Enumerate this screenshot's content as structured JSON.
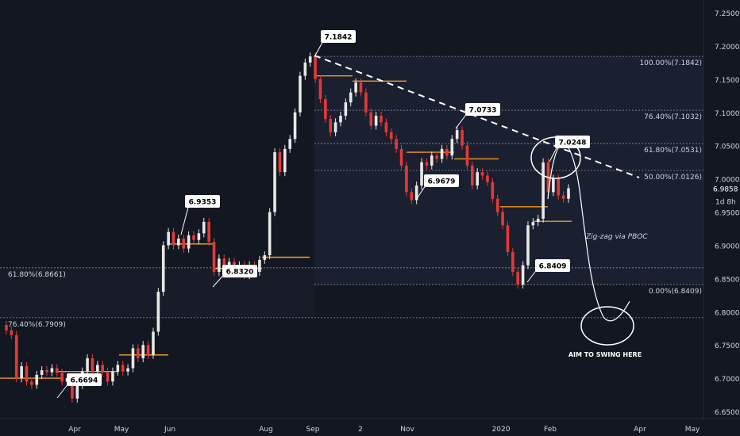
{
  "chart_data": {
    "type": "candlestick",
    "title": "",
    "xlabel": "",
    "ylabel": "",
    "ylim": [
      6.64,
      7.27
    ],
    "grid": false,
    "colors": {
      "background": "#131722",
      "bull": "#e8e8e8",
      "bear": "#e53935",
      "level_line": "#f59a23",
      "axis_text": "#d1d4dc",
      "fib_line": "#8a8d95",
      "trendline": "#ffffff"
    },
    "y_ticks": [
      "7.2500",
      "7.2000",
      "7.1500",
      "7.1000",
      "7.0500",
      "7.0000",
      "6.9500",
      "6.9000",
      "6.8500",
      "6.8000",
      "6.7500",
      "6.7000",
      "6.6500"
    ],
    "x_ticks": [
      "Apr",
      "May",
      "Jun",
      "Aug",
      "Sep",
      "2",
      "Nov",
      "2020",
      "Feb",
      "Apr",
      "May"
    ],
    "price_axis": {
      "last_price": "6.9858",
      "countdown": "1d 8h"
    },
    "fib_levels": [
      {
        "label": "100.00%(7.1842)",
        "value": 7.1842
      },
      {
        "label": "76.40%(7.1032)",
        "value": 7.1032
      },
      {
        "label": "61.80%(7.0531)",
        "value": 7.0531
      },
      {
        "label": "50.00%(7.0126)",
        "value": 7.0126
      },
      {
        "label": "0.00%(6.8409)",
        "value": 6.8409
      }
    ],
    "left_fib_levels": [
      {
        "label": "61.80%(6.8661)",
        "value": 6.8661
      },
      {
        "label": "76.40%(6.7909)",
        "value": 6.7909
      }
    ],
    "price_callouts": [
      "7.1842",
      "7.0733",
      "7.0248",
      "6.9679",
      "6.9353",
      "6.8320",
      "6.8409",
      "6.6694"
    ],
    "annotations": {
      "zigzag_note": "Zig-zag via PBOC",
      "swing_target": "AIM TO SWING HERE"
    },
    "series": [
      {
        "values": [
          {
            "o": 6.78,
            "c": 6.772
          },
          {
            "o": 6.772,
            "c": 6.765
          },
          {
            "o": 6.765,
            "c": 6.7
          },
          {
            "o": 6.7,
            "c": 6.718
          },
          {
            "o": 6.718,
            "c": 6.695
          },
          {
            "o": 6.695,
            "c": 6.69
          },
          {
            "o": 6.69,
            "c": 6.705
          },
          {
            "o": 6.705,
            "c": 6.712
          },
          {
            "o": 6.712,
            "c": 6.709
          },
          {
            "o": 6.709,
            "c": 6.715
          },
          {
            "o": 6.715,
            "c": 6.708
          },
          {
            "o": 6.708,
            "c": 6.695
          },
          {
            "o": 6.695,
            "c": 6.7
          },
          {
            "o": 6.7,
            "c": 6.6694
          },
          {
            "o": 6.6694,
            "c": 6.69
          },
          {
            "o": 6.69,
            "c": 6.71
          },
          {
            "o": 6.71,
            "c": 6.73
          },
          {
            "o": 6.73,
            "c": 6.71
          },
          {
            "o": 6.71,
            "c": 6.72
          },
          {
            "o": 6.72,
            "c": 6.71
          },
          {
            "o": 6.71,
            "c": 6.695
          },
          {
            "o": 6.695,
            "c": 6.71
          },
          {
            "o": 6.71,
            "c": 6.72
          },
          {
            "o": 6.72,
            "c": 6.71
          },
          {
            "o": 6.71,
            "c": 6.715
          },
          {
            "o": 6.715,
            "c": 6.745
          },
          {
            "o": 6.745,
            "c": 6.73
          },
          {
            "o": 6.73,
            "c": 6.75
          },
          {
            "o": 6.75,
            "c": 6.735
          },
          {
            "o": 6.735,
            "c": 6.77
          },
          {
            "o": 6.77,
            "c": 6.83
          },
          {
            "o": 6.83,
            "c": 6.9
          },
          {
            "o": 6.9,
            "c": 6.92
          },
          {
            "o": 6.92,
            "c": 6.9
          },
          {
            "o": 6.9,
            "c": 6.91
          },
          {
            "o": 6.91,
            "c": 6.895
          },
          {
            "o": 6.895,
            "c": 6.915
          },
          {
            "o": 6.915,
            "c": 6.908
          },
          {
            "o": 6.908,
            "c": 6.918
          },
          {
            "o": 6.918,
            "c": 6.9353
          },
          {
            "o": 6.9353,
            "c": 6.905
          },
          {
            "o": 6.905,
            "c": 6.86
          },
          {
            "o": 6.86,
            "c": 6.88
          },
          {
            "o": 6.88,
            "c": 6.865
          },
          {
            "o": 6.865,
            "c": 6.875
          },
          {
            "o": 6.875,
            "c": 6.86
          },
          {
            "o": 6.86,
            "c": 6.87
          },
          {
            "o": 6.87,
            "c": 6.855
          },
          {
            "o": 6.855,
            "c": 6.87
          },
          {
            "o": 6.87,
            "c": 6.86
          },
          {
            "o": 6.86,
            "c": 6.878
          },
          {
            "o": 6.878,
            "c": 6.885
          },
          {
            "o": 6.885,
            "c": 6.95
          },
          {
            "o": 6.95,
            "c": 7.04
          },
          {
            "o": 7.04,
            "c": 7.01
          },
          {
            "o": 7.01,
            "c": 7.045
          },
          {
            "o": 7.045,
            "c": 7.06
          },
          {
            "o": 7.06,
            "c": 7.1
          },
          {
            "o": 7.1,
            "c": 7.155
          },
          {
            "o": 7.155,
            "c": 7.175
          },
          {
            "o": 7.175,
            "c": 7.1842
          },
          {
            "o": 7.1842,
            "c": 7.15
          },
          {
            "o": 7.15,
            "c": 7.12
          },
          {
            "o": 7.12,
            "c": 7.09
          },
          {
            "o": 7.09,
            "c": 7.07
          },
          {
            "o": 7.07,
            "c": 7.085
          },
          {
            "o": 7.085,
            "c": 7.095
          },
          {
            "o": 7.095,
            "c": 7.115
          },
          {
            "o": 7.115,
            "c": 7.13
          },
          {
            "o": 7.13,
            "c": 7.145
          },
          {
            "o": 7.145,
            "c": 7.13
          },
          {
            "o": 7.13,
            "c": 7.1
          },
          {
            "o": 7.1,
            "c": 7.08
          },
          {
            "o": 7.08,
            "c": 7.095
          },
          {
            "o": 7.095,
            "c": 7.085
          },
          {
            "o": 7.085,
            "c": 7.07
          },
          {
            "o": 7.07,
            "c": 7.06
          },
          {
            "o": 7.06,
            "c": 7.045
          },
          {
            "o": 7.045,
            "c": 7.02
          },
          {
            "o": 7.02,
            "c": 6.98
          },
          {
            "o": 6.98,
            "c": 6.9679
          },
          {
            "o": 6.9679,
            "c": 6.99
          },
          {
            "o": 6.99,
            "c": 7.025
          },
          {
            "o": 7.025,
            "c": 7.02
          },
          {
            "o": 7.02,
            "c": 7.035
          },
          {
            "o": 7.035,
            "c": 7.03
          },
          {
            "o": 7.03,
            "c": 7.045
          },
          {
            "o": 7.045,
            "c": 7.035
          },
          {
            "o": 7.035,
            "c": 7.06
          },
          {
            "o": 7.06,
            "c": 7.0733
          },
          {
            "o": 7.0733,
            "c": 7.05
          },
          {
            "o": 7.05,
            "c": 7.02
          },
          {
            "o": 7.02,
            "c": 6.99
          },
          {
            "o": 6.99,
            "c": 7.01
          },
          {
            "o": 7.01,
            "c": 7.005
          },
          {
            "o": 7.005,
            "c": 6.995
          },
          {
            "o": 6.995,
            "c": 6.97
          },
          {
            "o": 6.97,
            "c": 6.95
          },
          {
            "o": 6.95,
            "c": 6.93
          },
          {
            "o": 6.93,
            "c": 6.89
          },
          {
            "o": 6.89,
            "c": 6.86
          },
          {
            "o": 6.86,
            "c": 6.8409
          },
          {
            "o": 6.8409,
            "c": 6.87
          },
          {
            "o": 6.87,
            "c": 6.93
          },
          {
            "o": 6.93,
            "c": 6.935
          },
          {
            "o": 6.935,
            "c": 6.94
          },
          {
            "o": 6.94,
            "c": 7.0248
          },
          {
            "o": 7.0248,
            "c": 6.98
          },
          {
            "o": 6.98,
            "c": 7.0
          },
          {
            "o": 7.0,
            "c": 6.975
          },
          {
            "o": 6.975,
            "c": 6.97
          },
          {
            "o": 6.97,
            "c": 6.9858
          }
        ]
      }
    ]
  }
}
